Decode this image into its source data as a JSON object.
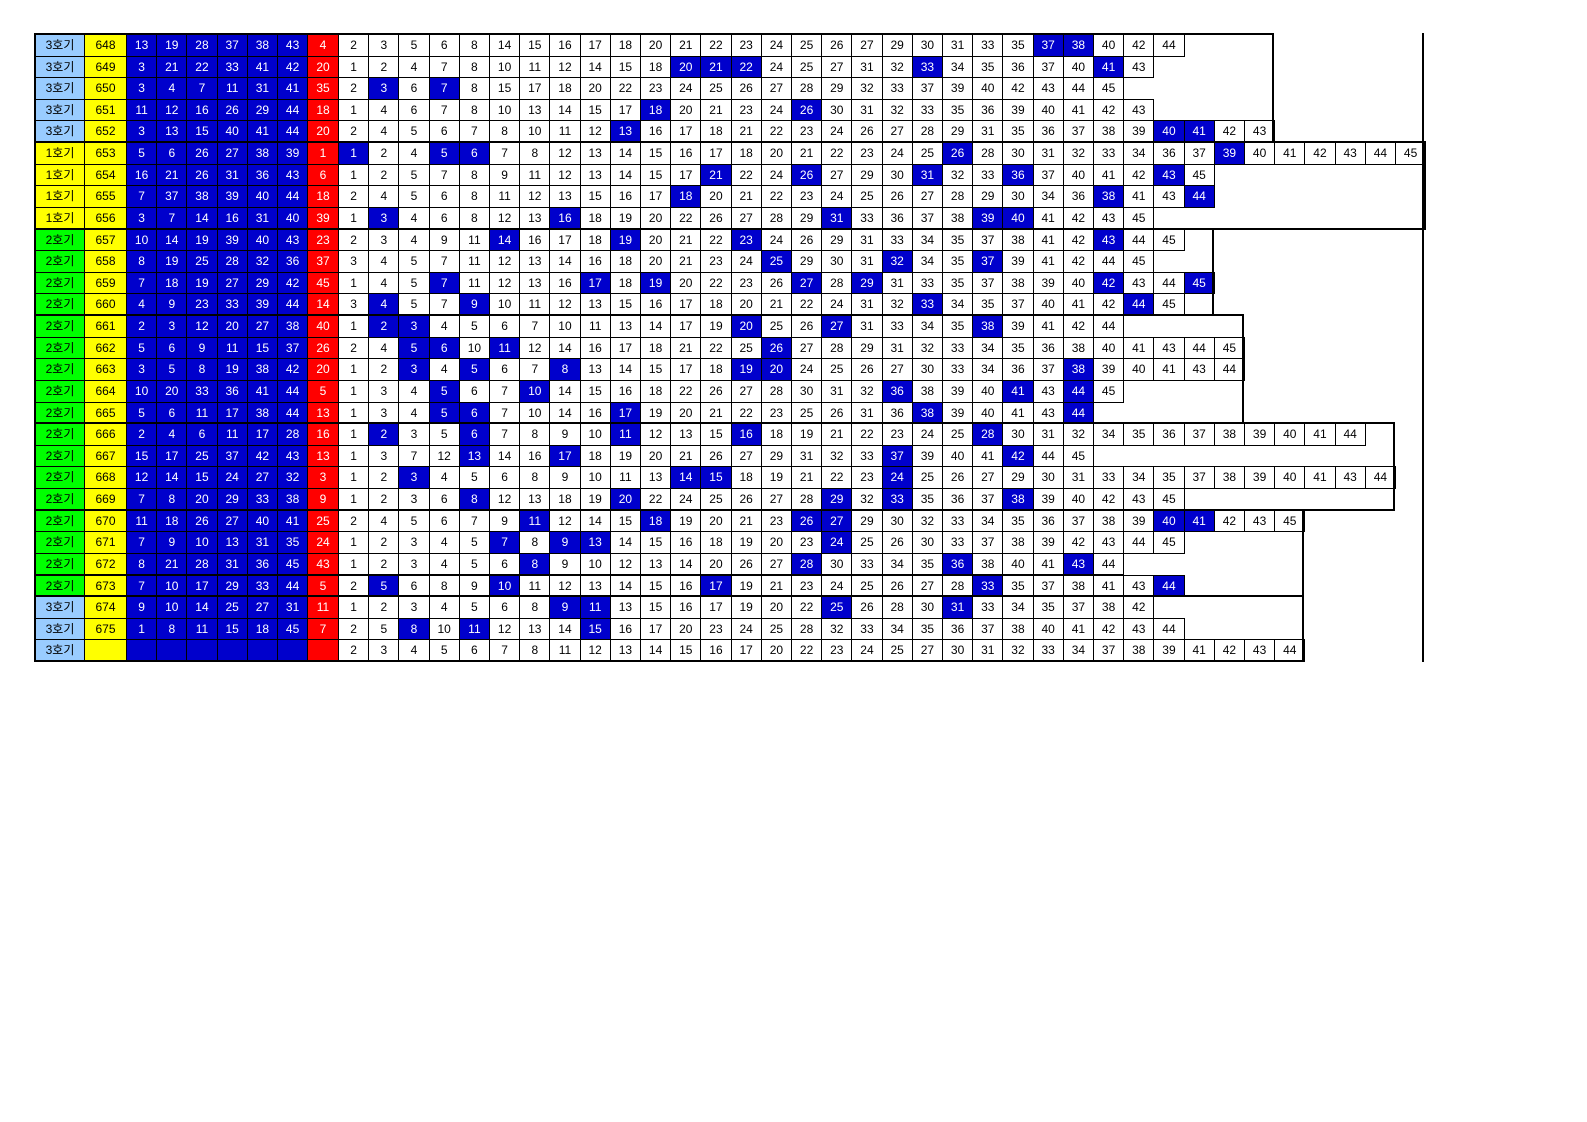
{
  "colors": {
    "label_3": "#99ccff",
    "label_1": "#ffff00",
    "label_2": "#00ff00",
    "round": "#ffff00",
    "main": "#0000cc",
    "bonus": "#ff0000",
    "highlight": "#0000cc"
  },
  "rows": [
    {
      "label": "3호기",
      "round": "648",
      "main": [
        "13",
        "19",
        "28",
        "37",
        "38",
        "43"
      ],
      "bonus": "4",
      "cells": [
        "2",
        "3",
        "5",
        "6",
        "8",
        "14",
        "15",
        "16",
        "17",
        "18",
        "20",
        "21",
        "22",
        "23",
        "24",
        "25",
        "26",
        "27",
        "29",
        "30",
        "31",
        "33",
        "35",
        "37",
        "38",
        "40",
        "42",
        "44"
      ],
      "hi": [
        "37",
        "38"
      ]
    },
    {
      "label": "3호기",
      "round": "649",
      "main": [
        "3",
        "21",
        "22",
        "33",
        "41",
        "42"
      ],
      "bonus": "20",
      "cells": [
        "1",
        "2",
        "4",
        "7",
        "8",
        "10",
        "11",
        "12",
        "14",
        "15",
        "18",
        "20",
        "21",
        "22",
        "24",
        "25",
        "27",
        "31",
        "32",
        "33",
        "34",
        "35",
        "36",
        "37",
        "40",
        "41",
        "43"
      ],
      "hi": [
        "20",
        "21",
        "22",
        "33",
        "41"
      ]
    },
    {
      "label": "3호기",
      "round": "650",
      "main": [
        "3",
        "4",
        "7",
        "11",
        "31",
        "41"
      ],
      "bonus": "35",
      "cells": [
        "2",
        "3",
        "6",
        "7",
        "8",
        "15",
        "17",
        "18",
        "20",
        "22",
        "23",
        "24",
        "25",
        "26",
        "27",
        "28",
        "29",
        "32",
        "33",
        "37",
        "39",
        "40",
        "42",
        "43",
        "44",
        "45"
      ],
      "hi": [
        "3",
        "7"
      ]
    },
    {
      "label": "3호기",
      "round": "651",
      "main": [
        "11",
        "12",
        "16",
        "26",
        "29",
        "44"
      ],
      "bonus": "18",
      "cells": [
        "1",
        "4",
        "6",
        "7",
        "8",
        "10",
        "13",
        "14",
        "15",
        "17",
        "18",
        "20",
        "21",
        "23",
        "24",
        "26",
        "30",
        "31",
        "32",
        "33",
        "35",
        "36",
        "39",
        "40",
        "41",
        "42",
        "43"
      ],
      "hi": [
        "18",
        "26"
      ]
    },
    {
      "label": "3호기",
      "round": "652",
      "main": [
        "3",
        "13",
        "15",
        "40",
        "41",
        "44"
      ],
      "bonus": "20",
      "cells": [
        "2",
        "4",
        "5",
        "6",
        "7",
        "8",
        "10",
        "11",
        "12",
        "13",
        "16",
        "17",
        "18",
        "21",
        "22",
        "23",
        "24",
        "26",
        "27",
        "28",
        "29",
        "31",
        "35",
        "36",
        "37",
        "38",
        "39",
        "40",
        "41",
        "42",
        "43"
      ],
      "hi": [
        "13",
        "40",
        "41"
      ]
    },
    {
      "label": "1호기",
      "round": "653",
      "main": [
        "5",
        "6",
        "26",
        "27",
        "38",
        "39"
      ],
      "bonus": "1",
      "cells": [
        "1",
        "2",
        "4",
        "5",
        "6",
        "7",
        "8",
        "12",
        "13",
        "14",
        "15",
        "16",
        "17",
        "18",
        "20",
        "21",
        "22",
        "23",
        "24",
        "25",
        "26",
        "28",
        "30",
        "31",
        "32",
        "33",
        "34",
        "36",
        "37",
        "39",
        "40",
        "41",
        "42",
        "43",
        "44",
        "45"
      ],
      "hi": [
        "1",
        "5",
        "6",
        "26",
        "39"
      ]
    },
    {
      "label": "1호기",
      "round": "654",
      "main": [
        "16",
        "21",
        "26",
        "31",
        "36",
        "43"
      ],
      "bonus": "6",
      "cells": [
        "1",
        "2",
        "5",
        "7",
        "8",
        "9",
        "11",
        "12",
        "13",
        "14",
        "15",
        "17",
        "21",
        "22",
        "24",
        "26",
        "27",
        "29",
        "30",
        "31",
        "32",
        "33",
        "36",
        "37",
        "40",
        "41",
        "42",
        "43",
        "45"
      ],
      "hi": [
        "21",
        "26",
        "31",
        "36",
        "43"
      ]
    },
    {
      "label": "1호기",
      "round": "655",
      "main": [
        "7",
        "37",
        "38",
        "39",
        "40",
        "44"
      ],
      "bonus": "18",
      "cells": [
        "2",
        "4",
        "5",
        "6",
        "8",
        "11",
        "12",
        "13",
        "15",
        "16",
        "17",
        "18",
        "20",
        "21",
        "22",
        "23",
        "24",
        "25",
        "26",
        "27",
        "28",
        "29",
        "30",
        "34",
        "36",
        "38",
        "41",
        "43",
        "44"
      ],
      "hi": [
        "18",
        "38",
        "44"
      ]
    },
    {
      "label": "1호기",
      "round": "656",
      "main": [
        "3",
        "7",
        "14",
        "16",
        "31",
        "40"
      ],
      "bonus": "39",
      "cells": [
        "1",
        "3",
        "4",
        "6",
        "8",
        "12",
        "13",
        "16",
        "18",
        "19",
        "20",
        "22",
        "26",
        "27",
        "28",
        "29",
        "31",
        "33",
        "36",
        "37",
        "38",
        "39",
        "40",
        "41",
        "42",
        "43",
        "45"
      ],
      "hi": [
        "3",
        "16",
        "31",
        "39",
        "40"
      ]
    },
    {
      "label": "2호기",
      "round": "657",
      "main": [
        "10",
        "14",
        "19",
        "39",
        "40",
        "43"
      ],
      "bonus": "23",
      "cells": [
        "2",
        "3",
        "4",
        "9",
        "11",
        "14",
        "16",
        "17",
        "18",
        "19",
        "20",
        "21",
        "22",
        "23",
        "24",
        "26",
        "29",
        "31",
        "33",
        "34",
        "35",
        "37",
        "38",
        "41",
        "42",
        "43",
        "44",
        "45"
      ],
      "hi": [
        "14",
        "19",
        "23",
        "43"
      ]
    },
    {
      "label": "2호기",
      "round": "658",
      "main": [
        "8",
        "19",
        "25",
        "28",
        "32",
        "36"
      ],
      "bonus": "37",
      "cells": [
        "3",
        "4",
        "5",
        "7",
        "11",
        "12",
        "13",
        "14",
        "16",
        "18",
        "20",
        "21",
        "23",
        "24",
        "25",
        "29",
        "30",
        "31",
        "32",
        "34",
        "35",
        "37",
        "39",
        "41",
        "42",
        "44",
        "45"
      ],
      "hi": [
        "25",
        "32",
        "37"
      ]
    },
    {
      "label": "2호기",
      "round": "659",
      "main": [
        "7",
        "18",
        "19",
        "27",
        "29",
        "42"
      ],
      "bonus": "45",
      "cells": [
        "1",
        "4",
        "5",
        "7",
        "11",
        "12",
        "13",
        "16",
        "17",
        "18",
        "19",
        "20",
        "22",
        "23",
        "26",
        "27",
        "28",
        "29",
        "31",
        "33",
        "35",
        "37",
        "38",
        "39",
        "40",
        "42",
        "43",
        "44",
        "45"
      ],
      "hi": [
        "7",
        "17",
        "19",
        "27",
        "29",
        "42",
        "45"
      ]
    },
    {
      "label": "2호기",
      "round": "660",
      "main": [
        "4",
        "9",
        "23",
        "33",
        "39",
        "44"
      ],
      "bonus": "14",
      "cells": [
        "3",
        "4",
        "5",
        "7",
        "9",
        "10",
        "11",
        "12",
        "13",
        "15",
        "16",
        "17",
        "18",
        "20",
        "21",
        "22",
        "24",
        "31",
        "32",
        "33",
        "34",
        "35",
        "37",
        "40",
        "41",
        "42",
        "44",
        "45"
      ],
      "hi": [
        "4",
        "9",
        "33",
        "44"
      ]
    },
    {
      "label": "2호기",
      "round": "661",
      "main": [
        "2",
        "3",
        "12",
        "20",
        "27",
        "38"
      ],
      "bonus": "40",
      "cells": [
        "1",
        "2",
        "3",
        "4",
        "5",
        "6",
        "7",
        "10",
        "11",
        "13",
        "14",
        "17",
        "19",
        "20",
        "25",
        "26",
        "27",
        "31",
        "33",
        "34",
        "35",
        "38",
        "39",
        "41",
        "42",
        "44"
      ],
      "hi": [
        "2",
        "3",
        "20",
        "27",
        "38"
      ]
    },
    {
      "label": "2호기",
      "round": "662",
      "main": [
        "5",
        "6",
        "9",
        "11",
        "15",
        "37"
      ],
      "bonus": "26",
      "cells": [
        "2",
        "4",
        "5",
        "6",
        "10",
        "11",
        "12",
        "14",
        "16",
        "17",
        "18",
        "21",
        "22",
        "25",
        "26",
        "27",
        "28",
        "29",
        "31",
        "32",
        "33",
        "34",
        "35",
        "36",
        "38",
        "40",
        "41",
        "43",
        "44",
        "45"
      ],
      "hi": [
        "5",
        "6",
        "11",
        "26"
      ]
    },
    {
      "label": "2호기",
      "round": "663",
      "main": [
        "3",
        "5",
        "8",
        "19",
        "38",
        "42"
      ],
      "bonus": "20",
      "cells": [
        "1",
        "2",
        "3",
        "4",
        "5",
        "6",
        "7",
        "8",
        "13",
        "14",
        "15",
        "17",
        "18",
        "19",
        "20",
        "24",
        "25",
        "26",
        "27",
        "30",
        "33",
        "34",
        "36",
        "37",
        "38",
        "39",
        "40",
        "41",
        "43",
        "44"
      ],
      "hi": [
        "3",
        "5",
        "8",
        "19",
        "20",
        "38"
      ]
    },
    {
      "label": "2호기",
      "round": "664",
      "main": [
        "10",
        "20",
        "33",
        "36",
        "41",
        "44"
      ],
      "bonus": "5",
      "cells": [
        "1",
        "3",
        "4",
        "5",
        "6",
        "7",
        "10",
        "14",
        "15",
        "16",
        "18",
        "22",
        "26",
        "27",
        "28",
        "30",
        "31",
        "32",
        "36",
        "38",
        "39",
        "40",
        "41",
        "43",
        "44",
        "45"
      ],
      "hi": [
        "5",
        "10",
        "36",
        "41",
        "44"
      ]
    },
    {
      "label": "2호기",
      "round": "665",
      "main": [
        "5",
        "6",
        "11",
        "17",
        "38",
        "44"
      ],
      "bonus": "13",
      "cells": [
        "1",
        "3",
        "4",
        "5",
        "6",
        "7",
        "10",
        "14",
        "16",
        "17",
        "19",
        "20",
        "21",
        "22",
        "23",
        "25",
        "26",
        "31",
        "36",
        "38",
        "39",
        "40",
        "41",
        "43",
        "44"
      ],
      "hi": [
        "5",
        "6",
        "17",
        "38",
        "44"
      ]
    },
    {
      "label": "2호기",
      "round": "666",
      "main": [
        "2",
        "4",
        "6",
        "11",
        "17",
        "28"
      ],
      "bonus": "16",
      "cells": [
        "1",
        "2",
        "3",
        "5",
        "6",
        "7",
        "8",
        "9",
        "10",
        "11",
        "12",
        "13",
        "15",
        "16",
        "18",
        "19",
        "21",
        "22",
        "23",
        "24",
        "25",
        "28",
        "30",
        "31",
        "32",
        "34",
        "35",
        "36",
        "37",
        "38",
        "39",
        "40",
        "41",
        "44"
      ],
      "hi": [
        "2",
        "6",
        "11",
        "16",
        "28"
      ]
    },
    {
      "label": "2호기",
      "round": "667",
      "main": [
        "15",
        "17",
        "25",
        "37",
        "42",
        "43"
      ],
      "bonus": "13",
      "cells": [
        "1",
        "3",
        "7",
        "12",
        "13",
        "14",
        "16",
        "17",
        "18",
        "19",
        "20",
        "21",
        "26",
        "27",
        "29",
        "31",
        "32",
        "33",
        "37",
        "39",
        "40",
        "41",
        "42",
        "44",
        "45"
      ],
      "hi": [
        "13",
        "17",
        "37",
        "42"
      ]
    },
    {
      "label": "2호기",
      "round": "668",
      "main": [
        "12",
        "14",
        "15",
        "24",
        "27",
        "32"
      ],
      "bonus": "3",
      "cells": [
        "1",
        "2",
        "3",
        "4",
        "5",
        "6",
        "8",
        "9",
        "10",
        "11",
        "13",
        "14",
        "15",
        "18",
        "19",
        "21",
        "22",
        "23",
        "24",
        "25",
        "26",
        "27",
        "29",
        "30",
        "31",
        "33",
        "34",
        "35",
        "37",
        "38",
        "39",
        "40",
        "41",
        "43",
        "44"
      ],
      "hi": [
        "3",
        "14",
        "15",
        "24"
      ]
    },
    {
      "label": "2호기",
      "round": "669",
      "main": [
        "7",
        "8",
        "20",
        "29",
        "33",
        "38"
      ],
      "bonus": "9",
      "cells": [
        "1",
        "2",
        "3",
        "6",
        "8",
        "12",
        "13",
        "18",
        "19",
        "20",
        "22",
        "24",
        "25",
        "26",
        "27",
        "28",
        "29",
        "32",
        "33",
        "35",
        "36",
        "37",
        "38",
        "39",
        "40",
        "42",
        "43",
        "45"
      ],
      "hi": [
        "8",
        "20",
        "29",
        "33",
        "38"
      ]
    },
    {
      "label": "2호기",
      "round": "670",
      "main": [
        "11",
        "18",
        "26",
        "27",
        "40",
        "41"
      ],
      "bonus": "25",
      "cells": [
        "2",
        "4",
        "5",
        "6",
        "7",
        "9",
        "11",
        "12",
        "14",
        "15",
        "18",
        "19",
        "20",
        "21",
        "23",
        "26",
        "27",
        "29",
        "30",
        "32",
        "33",
        "34",
        "35",
        "36",
        "37",
        "38",
        "39",
        "40",
        "41",
        "42",
        "43",
        "45"
      ],
      "hi": [
        "11",
        "18",
        "26",
        "27",
        "40",
        "41"
      ]
    },
    {
      "label": "2호기",
      "round": "671",
      "main": [
        "7",
        "9",
        "10",
        "13",
        "31",
        "35"
      ],
      "bonus": "24",
      "cells": [
        "1",
        "2",
        "3",
        "4",
        "5",
        "7",
        "8",
        "9",
        "13",
        "14",
        "15",
        "16",
        "18",
        "19",
        "20",
        "23",
        "24",
        "25",
        "26",
        "30",
        "33",
        "37",
        "38",
        "39",
        "42",
        "43",
        "44",
        "45"
      ],
      "hi": [
        "7",
        "9",
        "13",
        "24"
      ]
    },
    {
      "label": "2호기",
      "round": "672",
      "main": [
        "8",
        "21",
        "28",
        "31",
        "36",
        "45"
      ],
      "bonus": "43",
      "cells": [
        "1",
        "2",
        "3",
        "4",
        "5",
        "6",
        "8",
        "9",
        "10",
        "12",
        "13",
        "14",
        "20",
        "26",
        "27",
        "28",
        "30",
        "33",
        "34",
        "35",
        "36",
        "38",
        "40",
        "41",
        "43",
        "44"
      ],
      "hi": [
        "8",
        "28",
        "36",
        "43"
      ]
    },
    {
      "label": "2호기",
      "round": "673",
      "main": [
        "7",
        "10",
        "17",
        "29",
        "33",
        "44"
      ],
      "bonus": "5",
      "cells": [
        "2",
        "5",
        "6",
        "8",
        "9",
        "10",
        "11",
        "12",
        "13",
        "14",
        "15",
        "16",
        "17",
        "19",
        "21",
        "23",
        "24",
        "25",
        "26",
        "27",
        "28",
        "33",
        "35",
        "37",
        "38",
        "41",
        "43",
        "44"
      ],
      "hi": [
        "5",
        "10",
        "17",
        "33",
        "44"
      ]
    },
    {
      "label": "3호기",
      "round": "674",
      "main": [
        "9",
        "10",
        "14",
        "25",
        "27",
        "31"
      ],
      "bonus": "11",
      "cells": [
        "1",
        "2",
        "3",
        "4",
        "5",
        "6",
        "8",
        "9",
        "11",
        "13",
        "15",
        "16",
        "17",
        "19",
        "20",
        "22",
        "25",
        "26",
        "28",
        "30",
        "31",
        "33",
        "34",
        "35",
        "37",
        "38",
        "42"
      ],
      "hi": [
        "9",
        "11",
        "25",
        "31"
      ]
    },
    {
      "label": "3호기",
      "round": "675",
      "main": [
        "1",
        "8",
        "11",
        "15",
        "18",
        "45"
      ],
      "bonus": "7",
      "cells": [
        "2",
        "5",
        "8",
        "10",
        "11",
        "12",
        "13",
        "14",
        "15",
        "16",
        "17",
        "20",
        "23",
        "24",
        "25",
        "28",
        "32",
        "33",
        "34",
        "35",
        "36",
        "37",
        "38",
        "40",
        "41",
        "42",
        "43",
        "44"
      ],
      "hi": [
        "8",
        "11",
        "15"
      ]
    },
    {
      "label": "3호기",
      "round": "",
      "main": [
        "",
        "",
        "",
        "",
        "",
        ""
      ],
      "bonus": "",
      "cells": [
        "2",
        "3",
        "4",
        "5",
        "6",
        "7",
        "8",
        "11",
        "12",
        "13",
        "14",
        "15",
        "16",
        "17",
        "20",
        "22",
        "23",
        "24",
        "25",
        "27",
        "30",
        "31",
        "32",
        "33",
        "34",
        "37",
        "38",
        "39",
        "41",
        "42",
        "43",
        "44"
      ],
      "hi": []
    }
  ]
}
